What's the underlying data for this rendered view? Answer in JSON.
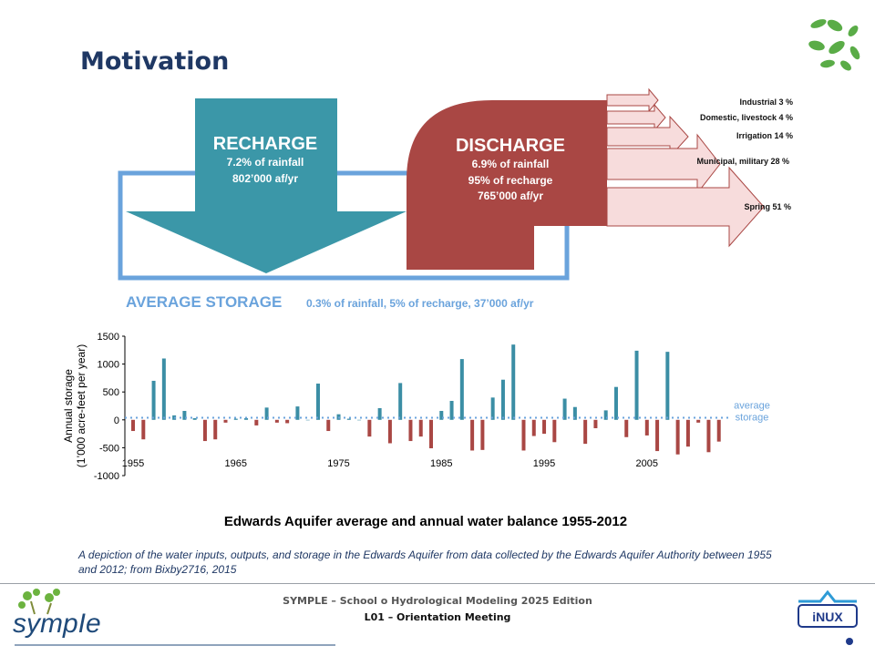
{
  "slide": {
    "title": "Motivation",
    "caption": "A depiction of the water inputs, outputs, and storage in the Edwards Aquifer from data collected by the Edwards Aquifer Authority between 1955 and 2012; from Bixby2716, 2015"
  },
  "footer": {
    "title": "SYMPLE – School o Hydrological Modeling 2025 Edition",
    "subtitle": "L01 – Orientation Meeting",
    "left_logo_text": "sympIe",
    "right_logo_text": "iNUX"
  },
  "diagram": {
    "recharge": {
      "title": "RECHARGE",
      "line1": "7.2% of rainfall",
      "line2": "802’000 af/yr",
      "color": "#3b97a8"
    },
    "discharge": {
      "title": "DISCHARGE",
      "line1": "6.9% of rainfall",
      "line2": "95% of recharge",
      "line3": "765’000 af/yr",
      "color": "#a94744"
    },
    "storage": {
      "title": "AVERAGE STORAGE",
      "detail": "0.3% of rainfall, 5% of recharge, 37’000 af/yr",
      "color": "#6aa3dc"
    },
    "outputs": [
      {
        "label": "Industrial 3 %"
      },
      {
        "label": "Domestic, livestock  4 %"
      },
      {
        "label": "Irrigation 14 %"
      },
      {
        "label": "Municipal, military 28 %"
      },
      {
        "label": "Spring 51 %"
      }
    ]
  },
  "chart_data": {
    "type": "bar",
    "title": "Edwards Aquifer average and annual water balance 1955-2012",
    "ylabel": "Annual storage\n(1’000 acre-feet per year)",
    "ylim": [
      -1000,
      1500
    ],
    "yticks": [
      "1500",
      "1000",
      "500",
      "0",
      "-500",
      "-1000"
    ],
    "ytick_values": [
      1500,
      1000,
      500,
      0,
      -500,
      -1000
    ],
    "xticks": [
      "1955",
      "1965",
      "1975",
      "1985",
      "1995",
      "2005"
    ],
    "xtick_values": [
      1955,
      1965,
      1975,
      1985,
      1995,
      2005
    ],
    "average_label": "average\nstorage",
    "average_value": 37,
    "positive_color": "#3b8ea5",
    "negative_color": "#a94744",
    "average_color": "#6aa3dc",
    "x": [
      1955,
      1956,
      1957,
      1958,
      1959,
      1960,
      1961,
      1962,
      1963,
      1964,
      1965,
      1966,
      1967,
      1968,
      1969,
      1970,
      1971,
      1972,
      1973,
      1974,
      1975,
      1976,
      1977,
      1978,
      1979,
      1980,
      1981,
      1982,
      1983,
      1984,
      1985,
      1986,
      1987,
      1988,
      1989,
      1990,
      1991,
      1992,
      1993,
      1994,
      1995,
      1996,
      1997,
      1998,
      1999,
      2000,
      2001,
      2002,
      2003,
      2004,
      2005,
      2006,
      2007,
      2008,
      2009,
      2010,
      2011,
      2012
    ],
    "values": [
      -200,
      -350,
      700,
      1100,
      80,
      160,
      30,
      -380,
      -350,
      -50,
      20,
      30,
      -100,
      220,
      -50,
      -60,
      240,
      0,
      650,
      -200,
      100,
      20,
      0,
      -300,
      210,
      -420,
      660,
      -380,
      -300,
      -510,
      160,
      340,
      1090,
      -550,
      -540,
      400,
      720,
      1350,
      -550,
      -290,
      -250,
      -400,
      380,
      230,
      -430,
      -150,
      170,
      590,
      -310,
      1240,
      -280,
      -560,
      1220,
      -620,
      -480,
      -50,
      -580,
      -390
    ]
  }
}
